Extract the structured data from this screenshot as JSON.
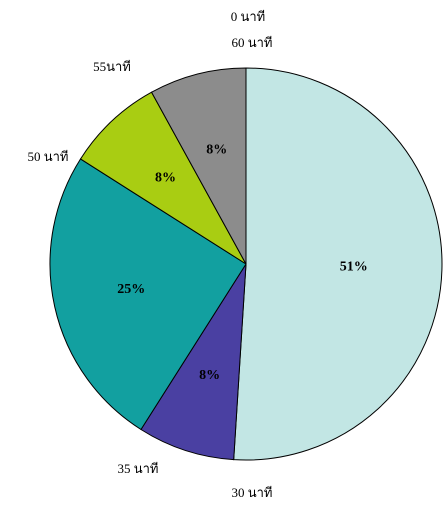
{
  "chart_data": {
    "type": "pie",
    "values": [
      51,
      8,
      25,
      8,
      8
    ],
    "value_labels": [
      "51%",
      "8%",
      "25%",
      "8%",
      "8%"
    ],
    "colors": [
      "#c2e6e4",
      "#4a40a2",
      "#12a0a0",
      "#a9cd12",
      "#8c8c8c"
    ],
    "annotations": [
      "0 นาที",
      "60 นาที",
      "55นาที",
      "50 นาที",
      "35 นาที",
      "30 นาที"
    ]
  }
}
